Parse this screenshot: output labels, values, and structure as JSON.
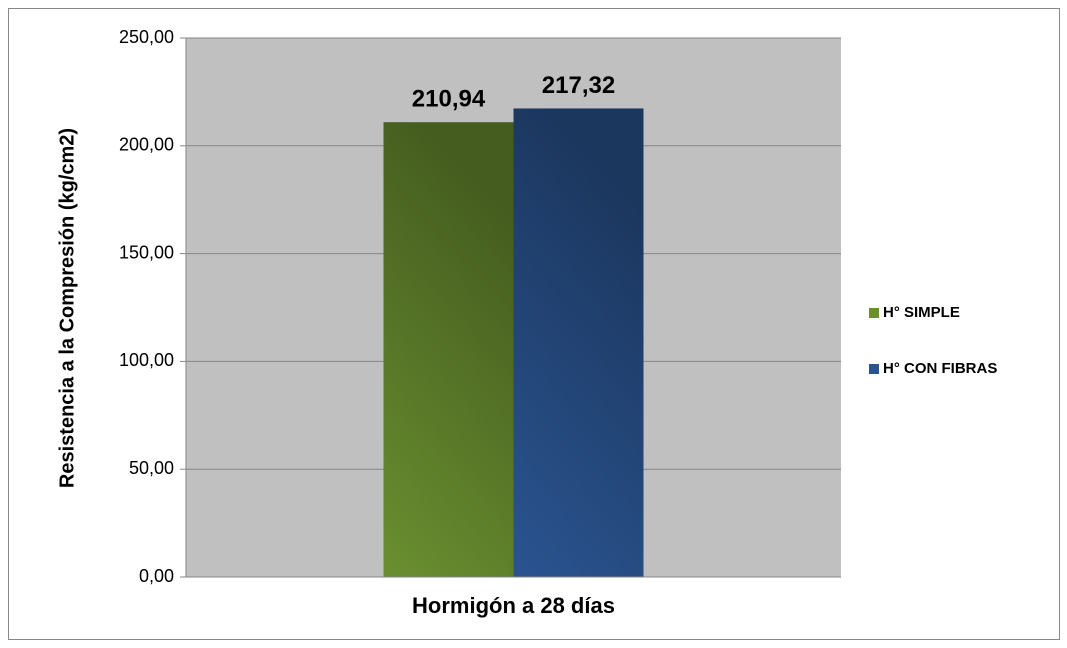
{
  "chart_data": {
    "type": "bar",
    "y_label": "Resistencia a la Compresión (kg/cm2)",
    "categories": [
      "Hormigón a 28 días"
    ],
    "series": [
      {
        "name": "H° SIMPLE",
        "color": "#6a8f30",
        "values": [
          210.94
        ],
        "value_labels": [
          "210,94"
        ]
      },
      {
        "name": "H° CON FIBRAS",
        "color": "#2a5490",
        "values": [
          217.32
        ],
        "value_labels": [
          "217,32"
        ]
      }
    ],
    "ylim": [
      0,
      250
    ],
    "yticks": [
      {
        "value": 0,
        "label": "0,00"
      },
      {
        "value": 50,
        "label": "50,00"
      },
      {
        "value": 100,
        "label": "100,00"
      },
      {
        "value": 150,
        "label": "150,00"
      },
      {
        "value": 200,
        "label": "200,00"
      },
      {
        "value": 250,
        "label": "250,00"
      }
    ],
    "grid": true,
    "legend": "right"
  }
}
